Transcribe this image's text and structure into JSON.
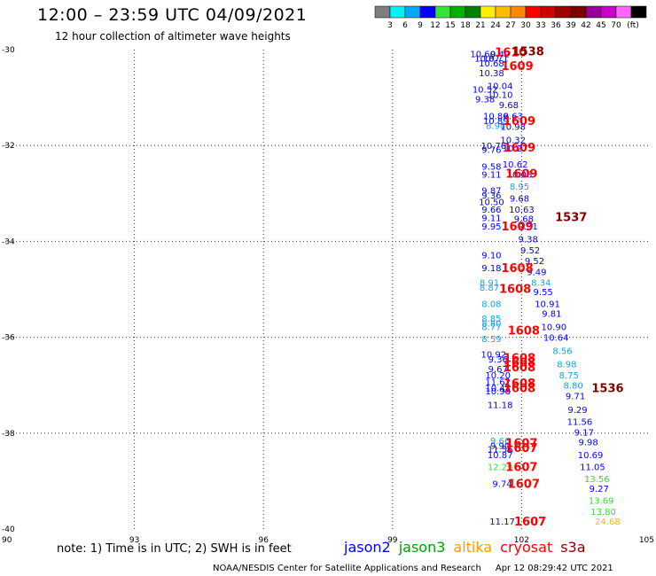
{
  "title": "12:00 – 23:59 UTC 04/09/2021",
  "subtitle": "12 hour collection of altimeter wave heights",
  "colorbar": {
    "colors": [
      "#7f7f7f",
      "#00f2f2",
      "#00aaff",
      "#0000ff",
      "#33e633",
      "#00b300",
      "#008000",
      "#ffee00",
      "#ffbb00",
      "#ff8800",
      "#ff0000",
      "#d00000",
      "#a00000",
      "#800000",
      "#990099",
      "#cc00cc",
      "#ff66ff",
      "#000000"
    ],
    "labels": [
      "3",
      "6",
      "9",
      "12",
      "15",
      "18",
      "21",
      "24",
      "27",
      "30",
      "33",
      "36",
      "39",
      "42",
      "45",
      "70",
      "(ft)"
    ]
  },
  "note": "note:  1) Time is in UTC;  2) SWH is in feet",
  "legend": [
    {
      "name": "jason2",
      "color": "#0000ff"
    },
    {
      "name": "jason3",
      "color": "#00a000"
    },
    {
      "name": "altika",
      "color": "#ff9900"
    },
    {
      "name": "cryosat",
      "color": "#ff0000"
    },
    {
      "name": "s3a",
      "color": "#800000"
    }
  ],
  "footer": {
    "credit": "NOAA/NESDIS Center for Satellite Applications and Research",
    "timestamp": "Apr 12 08:29:42 UTC 2021"
  },
  "chart_data": {
    "type": "scatter",
    "xlim": [
      90,
      105
    ],
    "ylim": [
      -40,
      -30
    ],
    "x_ticks": [
      "90",
      "93",
      "96",
      "99",
      "102",
      "105"
    ],
    "y_ticks": [
      "-30",
      "-32",
      "-34",
      "-36",
      "-38",
      "-40"
    ],
    "grid": true,
    "points": [
      {
        "x": 101.1,
        "y": -30.08,
        "label": "10.60",
        "color": "#0000ff"
      },
      {
        "x": 101.5,
        "y": -30.08,
        "label": "9.42",
        "color": "#0000ff"
      },
      {
        "x": 101.2,
        "y": -30.18,
        "label": "10.87",
        "color": "#0000ff"
      },
      {
        "x": 101.4,
        "y": -30.18,
        "label": "10.71",
        "color": "#0000ff"
      },
      {
        "x": 101.3,
        "y": -30.28,
        "label": "10.68",
        "color": "#0000ff"
      },
      {
        "x": 101.3,
        "y": -30.48,
        "label": "10.38",
        "color": "#0000ff"
      },
      {
        "x": 101.5,
        "y": -30.75,
        "label": "10.04",
        "color": "#0000ff"
      },
      {
        "x": 101.15,
        "y": -30.82,
        "label": "10.52",
        "color": "#0000ff"
      },
      {
        "x": 101.5,
        "y": -30.93,
        "label": "10.10",
        "color": "#0000ff"
      },
      {
        "x": 101.15,
        "y": -31.03,
        "label": "9.38",
        "color": "#0000ff"
      },
      {
        "x": 101.7,
        "y": -31.15,
        "label": "9.68",
        "color": "#0000ff"
      },
      {
        "x": 101.4,
        "y": -31.38,
        "label": "10.86",
        "color": "#0000ff"
      },
      {
        "x": 101.8,
        "y": -31.38,
        "label": "9.63",
        "color": "#0000ff"
      },
      {
        "x": 101.4,
        "y": -31.48,
        "label": "10.89",
        "color": "#0000ff"
      },
      {
        "x": 101.4,
        "y": -31.58,
        "label": "8.90",
        "color": "#1aa0e6"
      },
      {
        "x": 101.8,
        "y": -31.6,
        "label": "10.98",
        "color": "#0000ff"
      },
      {
        "x": 101.8,
        "y": -31.88,
        "label": "10.32",
        "color": "#0000ff"
      },
      {
        "x": 101.35,
        "y": -32.0,
        "label": "10.76",
        "color": "#0000ff"
      },
      {
        "x": 101.85,
        "y": -32.05,
        "label": "10.27",
        "color": "#0000ff"
      },
      {
        "x": 101.3,
        "y": -32.08,
        "label": "9.76",
        "color": "#0000ff"
      },
      {
        "x": 101.85,
        "y": -32.38,
        "label": "10.62",
        "color": "#0000ff"
      },
      {
        "x": 101.3,
        "y": -32.43,
        "label": "9.58",
        "color": "#0000ff"
      },
      {
        "x": 101.3,
        "y": -32.6,
        "label": "9.11",
        "color": "#0000ff"
      },
      {
        "x": 101.95,
        "y": -32.6,
        "label": "10.06",
        "color": "#0000ff"
      },
      {
        "x": 101.95,
        "y": -32.85,
        "label": "8.95",
        "color": "#1aa0e6"
      },
      {
        "x": 101.3,
        "y": -32.93,
        "label": "9.87",
        "color": "#0000ff"
      },
      {
        "x": 101.3,
        "y": -33.03,
        "label": "9.36",
        "color": "#0000ff"
      },
      {
        "x": 101.95,
        "y": -33.1,
        "label": "9.68",
        "color": "#0000ff"
      },
      {
        "x": 101.3,
        "y": -33.17,
        "label": "10.50",
        "color": "#0000ff"
      },
      {
        "x": 101.3,
        "y": -33.33,
        "label": "9.66",
        "color": "#0000ff"
      },
      {
        "x": 102.0,
        "y": -33.33,
        "label": "10.63",
        "color": "#0000ff"
      },
      {
        "x": 101.3,
        "y": -33.5,
        "label": "9.11",
        "color": "#0000ff"
      },
      {
        "x": 102.05,
        "y": -33.52,
        "label": "9.68",
        "color": "#0000ff"
      },
      {
        "x": 101.3,
        "y": -33.68,
        "label": "9.95",
        "color": "#0000ff"
      },
      {
        "x": 102.15,
        "y": -33.68,
        "label": "9.31",
        "color": "#0000ff"
      },
      {
        "x": 102.15,
        "y": -33.95,
        "label": "9.38",
        "color": "#0000ff"
      },
      {
        "x": 102.2,
        "y": -34.18,
        "label": "9.52",
        "color": "#0000ff"
      },
      {
        "x": 101.3,
        "y": -34.28,
        "label": "9.10",
        "color": "#0000ff"
      },
      {
        "x": 102.3,
        "y": -34.4,
        "label": "9.52",
        "color": "#0000ff"
      },
      {
        "x": 101.3,
        "y": -34.55,
        "label": "9.18",
        "color": "#0000ff"
      },
      {
        "x": 102.35,
        "y": -34.63,
        "label": "9.49",
        "color": "#0000ff"
      },
      {
        "x": 101.25,
        "y": -34.85,
        "label": "8.91",
        "color": "#1aa0e6"
      },
      {
        "x": 101.25,
        "y": -34.95,
        "label": "8.87",
        "color": "#1aa0e6"
      },
      {
        "x": 102.45,
        "y": -34.85,
        "label": "8.34",
        "color": "#1aa0e6"
      },
      {
        "x": 102.5,
        "y": -35.05,
        "label": "9.55",
        "color": "#0000ff"
      },
      {
        "x": 101.3,
        "y": -35.3,
        "label": "8.08",
        "color": "#1aa0e6"
      },
      {
        "x": 102.6,
        "y": -35.3,
        "label": "10.91",
        "color": "#0000ff"
      },
      {
        "x": 102.7,
        "y": -35.5,
        "label": "9.81",
        "color": "#0000ff"
      },
      {
        "x": 101.3,
        "y": -35.6,
        "label": "8.85",
        "color": "#1aa0e6"
      },
      {
        "x": 101.3,
        "y": -35.7,
        "label": "8.80",
        "color": "#1aa0e6"
      },
      {
        "x": 101.3,
        "y": -35.78,
        "label": "8.77",
        "color": "#1aa0e6"
      },
      {
        "x": 102.75,
        "y": -35.78,
        "label": "10.90",
        "color": "#0000ff"
      },
      {
        "x": 102.8,
        "y": -36.0,
        "label": "10.64",
        "color": "#0000ff"
      },
      {
        "x": 101.3,
        "y": -36.03,
        "label": "8.59",
        "color": "#1aa0e6"
      },
      {
        "x": 102.95,
        "y": -36.28,
        "label": "8.56",
        "color": "#1aa0e6"
      },
      {
        "x": 101.35,
        "y": -36.35,
        "label": "10.92",
        "color": "#0000ff"
      },
      {
        "x": 101.45,
        "y": -36.45,
        "label": "9.36",
        "color": "#0000ff"
      },
      {
        "x": 103.05,
        "y": -36.55,
        "label": "8.98",
        "color": "#1aa0e6"
      },
      {
        "x": 101.45,
        "y": -36.65,
        "label": "9.67",
        "color": "#0000ff"
      },
      {
        "x": 101.45,
        "y": -36.78,
        "label": "10.20",
        "color": "#0000ff"
      },
      {
        "x": 103.1,
        "y": -36.78,
        "label": "8.75",
        "color": "#1aa0e6"
      },
      {
        "x": 101.45,
        "y": -36.92,
        "label": "11.62",
        "color": "#0000ff"
      },
      {
        "x": 101.45,
        "y": -37.05,
        "label": "10.43",
        "color": "#0000ff"
      },
      {
        "x": 103.2,
        "y": -37.0,
        "label": "8.80",
        "color": "#1aa0e6"
      },
      {
        "x": 101.45,
        "y": -37.12,
        "label": "10.98",
        "color": "#0000ff"
      },
      {
        "x": 103.25,
        "y": -37.22,
        "label": "9.71",
        "color": "#0000ff"
      },
      {
        "x": 101.5,
        "y": -37.4,
        "label": "11.18",
        "color": "#0000ff"
      },
      {
        "x": 103.3,
        "y": -37.5,
        "label": "9.29",
        "color": "#0000ff"
      },
      {
        "x": 103.35,
        "y": -37.75,
        "label": "11.56",
        "color": "#0000ff"
      },
      {
        "x": 103.45,
        "y": -37.98,
        "label": "9.17",
        "color": "#0000ff"
      },
      {
        "x": 101.5,
        "y": -38.15,
        "label": "9.66",
        "color": "#1aa0e6"
      },
      {
        "x": 101.5,
        "y": -38.25,
        "label": "9.90",
        "color": "#0000ff"
      },
      {
        "x": 101.5,
        "y": -38.33,
        "label": "11.56",
        "color": "#0000ff"
      },
      {
        "x": 103.55,
        "y": -38.18,
        "label": "9.98",
        "color": "#0000ff"
      },
      {
        "x": 101.5,
        "y": -38.45,
        "label": "10.87",
        "color": "#0000ff"
      },
      {
        "x": 103.6,
        "y": -38.45,
        "label": "10.69",
        "color": "#0000ff"
      },
      {
        "x": 101.5,
        "y": -38.7,
        "label": "12.29",
        "color": "#33dd33"
      },
      {
        "x": 103.65,
        "y": -38.7,
        "label": "11.05",
        "color": "#0000ff"
      },
      {
        "x": 103.75,
        "y": -38.95,
        "label": "13.56",
        "color": "#33dd33"
      },
      {
        "x": 101.55,
        "y": -39.05,
        "label": "9.74",
        "color": "#0000ff"
      },
      {
        "x": 103.8,
        "y": -39.15,
        "label": "9.27",
        "color": "#0000ff"
      },
      {
        "x": 103.85,
        "y": -39.4,
        "label": "13.69",
        "color": "#33dd33"
      },
      {
        "x": 103.9,
        "y": -39.63,
        "label": "13.80",
        "color": "#33dd33"
      },
      {
        "x": 101.55,
        "y": -39.83,
        "label": "11.17",
        "color": "#0000ff"
      },
      {
        "x": 104.0,
        "y": -39.83,
        "label": "24.68",
        "color": "#ffbb00"
      }
    ],
    "time_labels": [
      {
        "x": 101.75,
        "y": -30.05,
        "label": "1610",
        "color": "#ff0000"
      },
      {
        "x": 102.15,
        "y": -30.03,
        "label": "1538",
        "color": "#800000"
      },
      {
        "x": 101.9,
        "y": -30.33,
        "label": "1609",
        "color": "#ff0000"
      },
      {
        "x": 101.95,
        "y": -31.48,
        "label": "1609",
        "color": "#ff0000"
      },
      {
        "x": 101.95,
        "y": -32.03,
        "label": "1609",
        "color": "#ff0000"
      },
      {
        "x": 102.0,
        "y": -32.58,
        "label": "1609",
        "color": "#ff0000"
      },
      {
        "x": 101.9,
        "y": -33.68,
        "label": "1609",
        "color": "#ff0000"
      },
      {
        "x": 103.15,
        "y": -33.48,
        "label": "1537",
        "color": "#800000"
      },
      {
        "x": 101.9,
        "y": -34.55,
        "label": "1608",
        "color": "#ff0000"
      },
      {
        "x": 101.85,
        "y": -34.98,
        "label": "1608",
        "color": "#ff0000"
      },
      {
        "x": 102.05,
        "y": -35.85,
        "label": "1608",
        "color": "#ff0000"
      },
      {
        "x": 101.95,
        "y": -36.42,
        "label": "1608",
        "color": "#ff0000"
      },
      {
        "x": 101.95,
        "y": -36.52,
        "label": "1608",
        "color": "#ff0000"
      },
      {
        "x": 101.95,
        "y": -36.62,
        "label": "1608",
        "color": "#ff0000"
      },
      {
        "x": 101.95,
        "y": -36.95,
        "label": "1608",
        "color": "#ff0000"
      },
      {
        "x": 101.95,
        "y": -37.05,
        "label": "1608",
        "color": "#ff0000"
      },
      {
        "x": 104.0,
        "y": -37.05,
        "label": "1536",
        "color": "#800000"
      },
      {
        "x": 102.0,
        "y": -38.2,
        "label": "1607",
        "color": "#ff0000"
      },
      {
        "x": 102.0,
        "y": -38.3,
        "label": "1607",
        "color": "#ff0000"
      },
      {
        "x": 102.0,
        "y": -38.7,
        "label": "1607",
        "color": "#ff0000"
      },
      {
        "x": 102.05,
        "y": -39.05,
        "label": "1607",
        "color": "#ff0000"
      },
      {
        "x": 102.2,
        "y": -39.83,
        "label": "1607",
        "color": "#ff0000"
      }
    ]
  }
}
